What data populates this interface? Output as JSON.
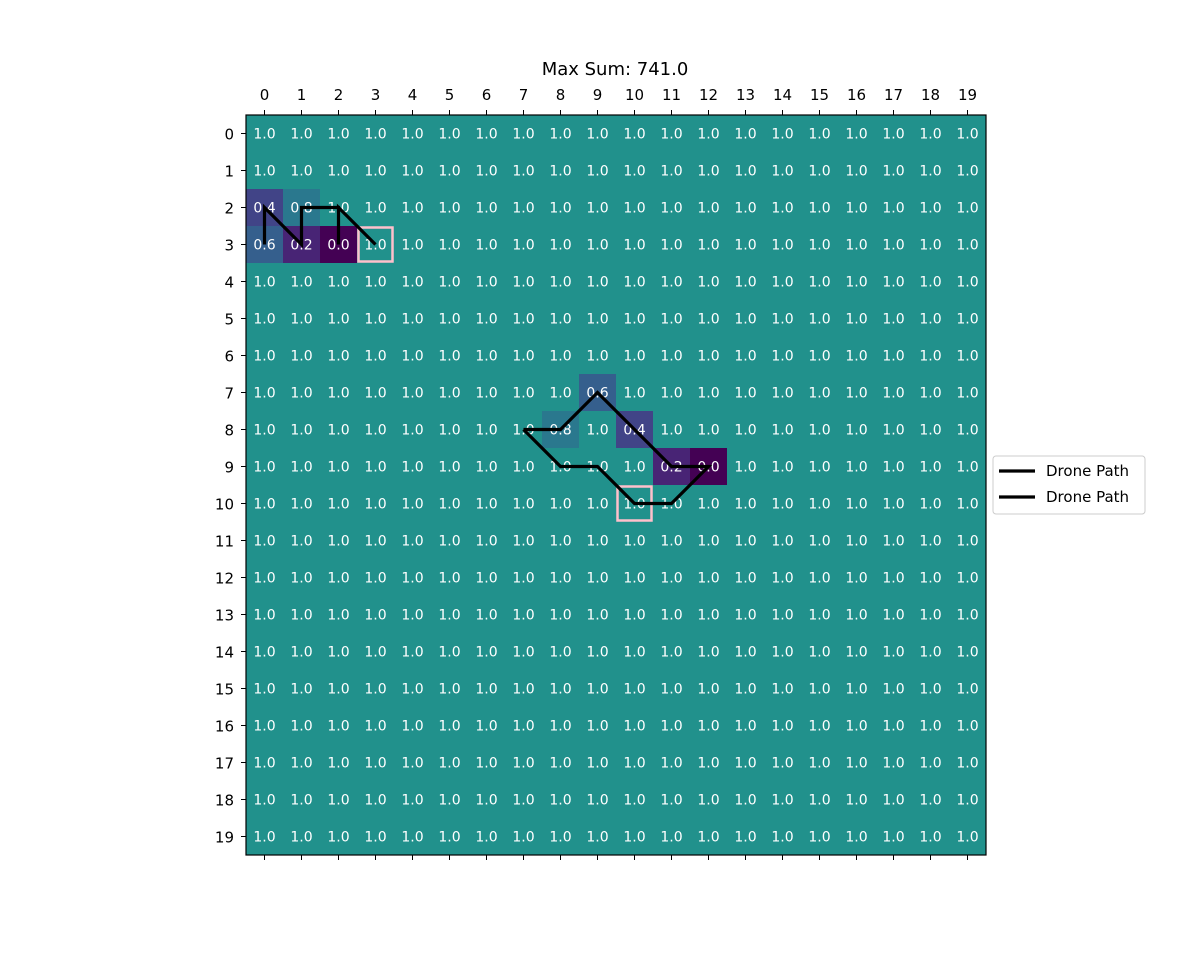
{
  "chart_data": {
    "type": "heatmap",
    "title": "Max Sum: 741.0",
    "xlabel": "",
    "ylabel": "",
    "x_ticks": [
      "0",
      "1",
      "2",
      "3",
      "4",
      "5",
      "6",
      "7",
      "8",
      "9",
      "10",
      "11",
      "12",
      "13",
      "14",
      "15",
      "16",
      "17",
      "18",
      "19"
    ],
    "y_ticks": [
      "0",
      "1",
      "2",
      "3",
      "4",
      "5",
      "6",
      "7",
      "8",
      "9",
      "10",
      "11",
      "12",
      "13",
      "14",
      "15",
      "16",
      "17",
      "18",
      "19"
    ],
    "colormap": "viridis",
    "vmin": 0.0,
    "vmax": 2.0,
    "default_value": 1.0,
    "cell_overrides": [
      {
        "row": 2,
        "col": 0,
        "value": 0.4
      },
      {
        "row": 2,
        "col": 1,
        "value": 0.8
      },
      {
        "row": 3,
        "col": 0,
        "value": 0.6
      },
      {
        "row": 3,
        "col": 1,
        "value": 0.2
      },
      {
        "row": 3,
        "col": 2,
        "value": 0.0
      },
      {
        "row": 7,
        "col": 9,
        "value": 0.6
      },
      {
        "row": 8,
        "col": 8,
        "value": 0.8
      },
      {
        "row": 8,
        "col": 10,
        "value": 0.4
      },
      {
        "row": 9,
        "col": 11,
        "value": 0.2
      },
      {
        "row": 9,
        "col": 12,
        "value": 0.0
      }
    ],
    "paths": [
      {
        "name": "Drone Path",
        "color": "#000000",
        "points": [
          [
            2,
            0
          ],
          [
            3,
            0
          ],
          [
            2,
            0
          ],
          [
            3,
            1
          ],
          [
            2,
            1
          ],
          [
            2,
            2
          ],
          [
            3,
            2
          ],
          [
            2,
            2
          ],
          [
            3,
            3
          ]
        ]
      },
      {
        "name": "Drone Path",
        "color": "#000000",
        "points": [
          [
            8,
            7
          ],
          [
            8,
            8
          ],
          [
            7,
            9
          ],
          [
            8,
            10
          ],
          [
            9,
            11
          ],
          [
            9,
            12
          ],
          [
            10,
            11
          ],
          [
            10,
            10
          ],
          [
            9,
            9
          ],
          [
            9,
            8
          ],
          [
            8,
            7
          ]
        ]
      }
    ],
    "highlight_cells": [
      {
        "row": 3,
        "col": 3,
        "color": "#ffc0cb"
      },
      {
        "row": 10,
        "col": 10,
        "color": "#ffc0cb"
      }
    ],
    "legend": {
      "placement": "center-right",
      "entries": [
        "Drone Path",
        "Drone Path"
      ]
    }
  }
}
